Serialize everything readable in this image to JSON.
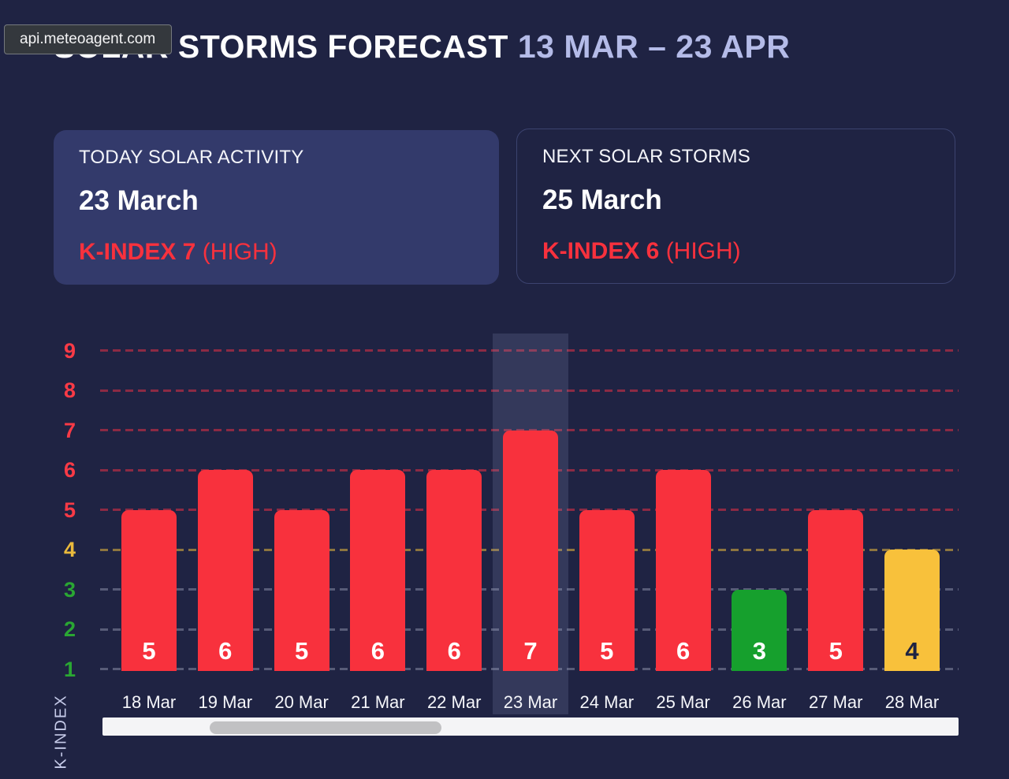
{
  "page": {
    "tooltip_text": "api.meteoagent.com"
  },
  "header": {
    "title": "SOLAR STORMS FORECAST",
    "range": "13 MAR – 23 APR"
  },
  "cards": [
    {
      "label": "TODAY SOLAR ACTIVITY",
      "date": "23 March",
      "kindex": "K-INDEX 7",
      "level": " (HIGH)"
    },
    {
      "label": "NEXT SOLAR STORMS",
      "date": "25 March",
      "kindex": "K-INDEX 6",
      "level": " (HIGH)"
    }
  ],
  "chart_data": {
    "type": "bar",
    "title": "",
    "xlabel": "",
    "ylabel": "K-INDEX",
    "categories": [
      "18 Mar",
      "19 Mar",
      "20 Mar",
      "21 Mar",
      "22 Mar",
      "23 Mar",
      "24 Mar",
      "25 Mar",
      "26 Mar",
      "27 Mar",
      "28 Mar"
    ],
    "values": [
      5,
      6,
      5,
      6,
      6,
      7,
      5,
      6,
      3,
      5,
      4
    ],
    "highlighted_category": "23 Mar",
    "yticks": [
      1,
      2,
      3,
      4,
      5,
      6,
      7,
      8,
      9
    ],
    "ylim": [
      1,
      9
    ],
    "grid": true,
    "legend": false,
    "severity_rule": {
      "low_max": 3,
      "medium_max": 4
    },
    "severity_colors": {
      "low": "#16a02d",
      "medium": "#f8c13b",
      "high": "#f8313d"
    },
    "bar_label_colors": {
      "low": "#ffffff",
      "medium": "#1e2342",
      "high": "#ffffff"
    }
  },
  "colors": {
    "background": "#1f2343",
    "card_fill": "#333a6b",
    "card_border": "#3c436f",
    "accent_red": "#f8313d",
    "accent_yellow": "#f8c13b",
    "accent_green": "#16a02d",
    "title_range": "#b4bbe8",
    "axis_label": "#c6cbe9"
  }
}
